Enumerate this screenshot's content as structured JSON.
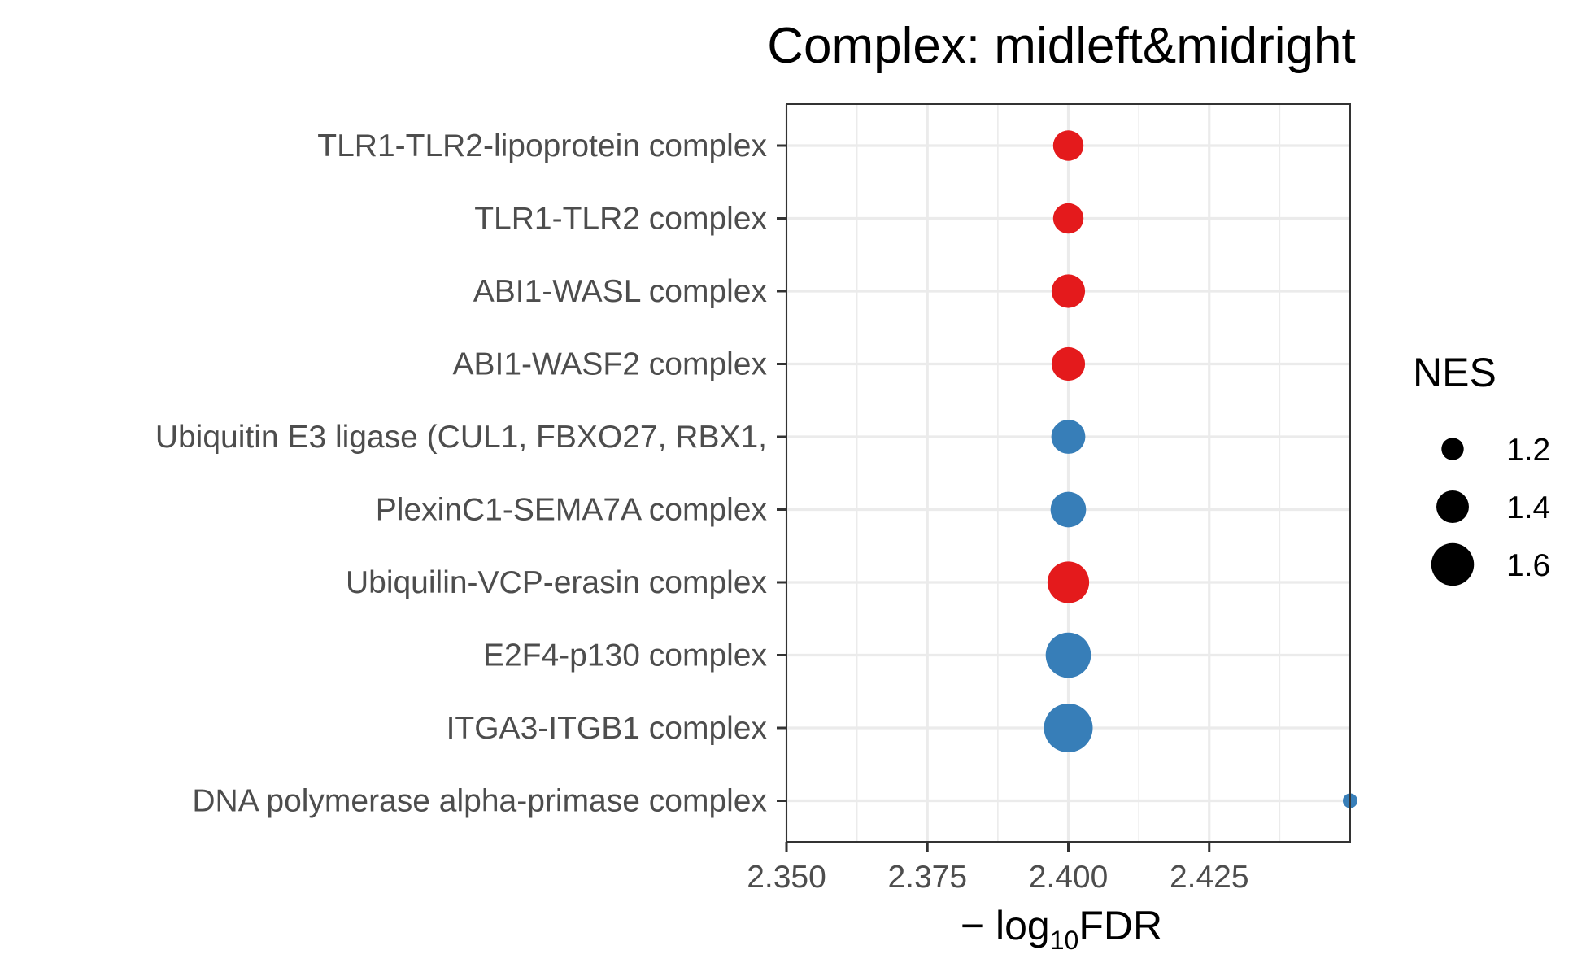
{
  "chart_data": {
    "type": "scatter",
    "title": "Complex: midleft&midright",
    "xlabel": {
      "prefix": "− log",
      "subscript": "10",
      "suffix": "FDR"
    },
    "xlim": [
      2.35,
      2.45
    ],
    "xticks": [
      2.35,
      2.375,
      2.4,
      2.425
    ],
    "xtick_labels": [
      "2.350",
      "2.375",
      "2.400",
      "2.425"
    ],
    "grid": true,
    "categories": [
      "TLR1-TLR2-lipoprotein complex",
      "TLR1-TLR2 complex",
      "ABI1-WASL complex",
      "ABI1-WASF2 complex",
      "Ubiquitin E3 ligase (CUL1, FBXO27, RBX1,",
      "PlexinC1-SEMA7A complex",
      "Ubiquilin-VCP-erasin complex",
      "E2F4-p130 complex",
      "ITGA3-ITGB1 complex",
      "DNA polymerase alpha-primase complex"
    ],
    "points": [
      {
        "category": "TLR1-TLR2-lipoprotein complex",
        "x": 2.4,
        "nes": 1.36,
        "direction": "up"
      },
      {
        "category": "TLR1-TLR2 complex",
        "x": 2.4,
        "nes": 1.36,
        "direction": "up"
      },
      {
        "category": "ABI1-WASL complex",
        "x": 2.4,
        "nes": 1.42,
        "direction": "up"
      },
      {
        "category": "ABI1-WASF2 complex",
        "x": 2.4,
        "nes": 1.42,
        "direction": "up"
      },
      {
        "category": "Ubiquitin E3 ligase (CUL1, FBXO27, RBX1,",
        "x": 2.4,
        "nes": 1.43,
        "direction": "down"
      },
      {
        "category": "PlexinC1-SEMA7A complex",
        "x": 2.4,
        "nes": 1.46,
        "direction": "down"
      },
      {
        "category": "Ubiquilin-VCP-erasin complex",
        "x": 2.4,
        "nes": 1.58,
        "direction": "up"
      },
      {
        "category": "E2F4-p130 complex",
        "x": 2.4,
        "nes": 1.65,
        "direction": "down"
      },
      {
        "category": "ITGA3-ITGB1 complex",
        "x": 2.4,
        "nes": 1.72,
        "direction": "down"
      },
      {
        "category": "DNA polymerase alpha-primase complex",
        "x": 2.45,
        "nes": 1.05,
        "direction": "down"
      }
    ],
    "colors": {
      "up": "#e41a1c",
      "down": "#377eb8"
    },
    "legend": {
      "title": "NES",
      "position": "right",
      "entries": [
        {
          "label": "1.2",
          "value": 1.2
        },
        {
          "label": "1.4",
          "value": 1.4
        },
        {
          "label": "1.6",
          "value": 1.6
        }
      ]
    }
  }
}
